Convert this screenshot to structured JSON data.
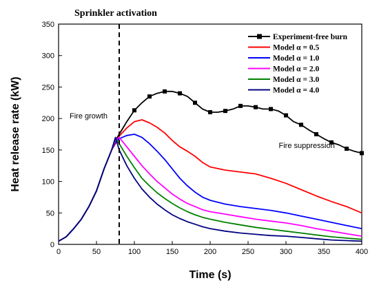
{
  "chart_data": {
    "type": "line",
    "xlabel": "Time (s)",
    "ylabel": "Heat release rate (kW)",
    "xlim": [
      0,
      400
    ],
    "ylim": [
      0,
      350
    ],
    "x_ticks": [
      0,
      50,
      100,
      150,
      200,
      250,
      300,
      350,
      400
    ],
    "y_ticks": [
      0,
      50,
      100,
      150,
      200,
      250,
      300,
      350
    ],
    "grid": false,
    "legend_position": "top-right",
    "annotations": {
      "sprinkler": "Sprinkler activation",
      "sprinkler_time": 80,
      "fire_growth": "Fire growth",
      "fire_growth_at": [
        30,
        200
      ],
      "fire_suppression": "Fire suppression",
      "fire_suppression_at": [
        325,
        153
      ]
    },
    "series": [
      {
        "name": "Experiment-free burn",
        "color": "#000000",
        "marker": "square",
        "x": [
          0,
          10,
          20,
          30,
          40,
          50,
          60,
          70,
          75,
          80,
          85,
          90,
          100,
          110,
          120,
          130,
          140,
          150,
          160,
          170,
          180,
          190,
          200,
          210,
          220,
          230,
          240,
          250,
          260,
          270,
          280,
          290,
          300,
          310,
          320,
          330,
          340,
          350,
          360,
          370,
          380,
          390,
          400
        ],
        "y": [
          5,
          12,
          25,
          40,
          60,
          85,
          120,
          150,
          165,
          175,
          185,
          195,
          213,
          225,
          235,
          240,
          243,
          243,
          240,
          235,
          225,
          215,
          210,
          210,
          212,
          215,
          220,
          220,
          218,
          215,
          215,
          212,
          205,
          195,
          190,
          182,
          175,
          168,
          162,
          158,
          152,
          148,
          145
        ]
      },
      {
        "name": "Model α = 0.5",
        "color": "#ff0000",
        "x": [
          0,
          10,
          20,
          30,
          40,
          50,
          60,
          70,
          75,
          80,
          90,
          100,
          110,
          120,
          130,
          140,
          150,
          160,
          170,
          180,
          190,
          200,
          220,
          240,
          260,
          280,
          300,
          320,
          340,
          360,
          380,
          400
        ],
        "y": [
          5,
          12,
          25,
          40,
          60,
          85,
          120,
          150,
          160,
          172,
          185,
          195,
          198,
          193,
          186,
          177,
          165,
          155,
          148,
          140,
          130,
          123,
          118,
          115,
          112,
          105,
          97,
          87,
          77,
          68,
          60,
          50
        ]
      },
      {
        "name": "Model α = 1.0",
        "color": "#0000ff",
        "x": [
          0,
          10,
          20,
          30,
          40,
          50,
          60,
          70,
          75,
          80,
          90,
          100,
          110,
          120,
          130,
          140,
          150,
          160,
          170,
          180,
          190,
          200,
          220,
          240,
          260,
          280,
          300,
          320,
          340,
          360,
          380,
          400
        ],
        "y": [
          5,
          12,
          25,
          40,
          60,
          85,
          120,
          150,
          162,
          168,
          173,
          175,
          170,
          160,
          148,
          135,
          120,
          105,
          93,
          83,
          75,
          70,
          64,
          60,
          57,
          54,
          50,
          45,
          40,
          35,
          30,
          25
        ]
      },
      {
        "name": "Model α = 2.0",
        "color": "#ff00ff",
        "x": [
          0,
          10,
          20,
          30,
          40,
          50,
          60,
          70,
          75,
          80,
          90,
          100,
          110,
          120,
          130,
          140,
          150,
          160,
          170,
          180,
          190,
          200,
          220,
          240,
          260,
          280,
          300,
          320,
          340,
          360,
          380,
          400
        ],
        "y": [
          5,
          12,
          25,
          40,
          60,
          85,
          120,
          150,
          165,
          170,
          155,
          140,
          125,
          112,
          100,
          90,
          80,
          72,
          65,
          60,
          55,
          52,
          48,
          44,
          40,
          37,
          34,
          30,
          25,
          21,
          17,
          13
        ]
      },
      {
        "name": "Model α = 3.0",
        "color": "#008000",
        "x": [
          0,
          10,
          20,
          30,
          40,
          50,
          60,
          70,
          75,
          80,
          90,
          100,
          110,
          120,
          130,
          140,
          150,
          160,
          170,
          180,
          190,
          200,
          220,
          240,
          260,
          280,
          300,
          320,
          340,
          360,
          380,
          400
        ],
        "y": [
          5,
          12,
          25,
          40,
          60,
          85,
          120,
          150,
          168,
          160,
          140,
          122,
          105,
          93,
          82,
          73,
          65,
          58,
          52,
          47,
          43,
          40,
          35,
          31,
          27,
          24,
          21,
          18,
          15,
          12,
          10,
          8
        ]
      },
      {
        "name": "Model α = 4.0",
        "color": "#000080",
        "x": [
          0,
          10,
          20,
          30,
          40,
          50,
          60,
          70,
          75,
          80,
          90,
          100,
          110,
          120,
          130,
          140,
          150,
          160,
          170,
          180,
          190,
          200,
          220,
          240,
          260,
          280,
          300,
          320,
          340,
          360,
          380,
          400
        ],
        "y": [
          5,
          12,
          25,
          40,
          60,
          85,
          120,
          150,
          170,
          150,
          125,
          105,
          88,
          75,
          64,
          55,
          47,
          41,
          36,
          32,
          28,
          25,
          21,
          18,
          16,
          14,
          13,
          11,
          9,
          7,
          6,
          5
        ]
      }
    ]
  }
}
